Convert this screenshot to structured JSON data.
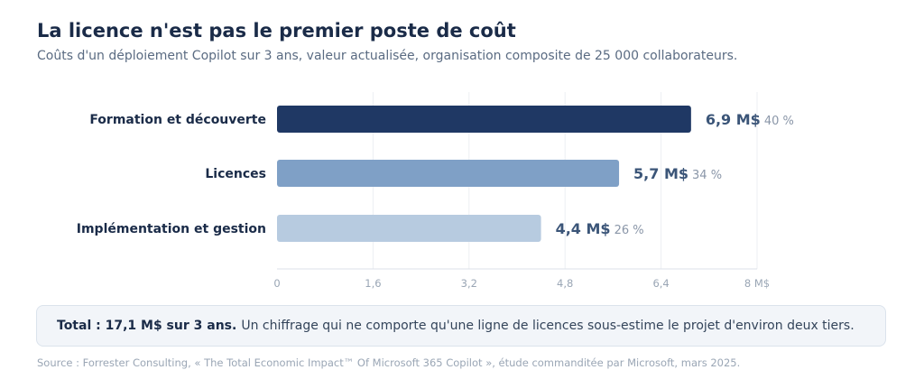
{
  "title": "La licence n'est pas le premier poste de coût",
  "subtitle": "Coûts d'un déploiement Copilot sur 3 ans, valeur actualisée, organisation composite de 25 000 collaborateurs.",
  "colors": {
    "bar_formation": "#1f3864",
    "bar_licences": "#7fa0c6",
    "bar_implementation": "#b7cbe0",
    "value_label": "#3b5578",
    "percent_label": "#8a96a8",
    "category_label": "#1a2b48",
    "tick_label": "#9aa6b5",
    "grid": "#eceff3"
  },
  "chart_data": {
    "type": "bar",
    "orientation": "horizontal",
    "categories": [
      "Formation et découverte",
      "Licences",
      "Implémentation et gestion"
    ],
    "values": [
      6.9,
      5.7,
      4.4
    ],
    "value_labels": [
      "6,9 M$",
      "5,7 M$",
      "4,4 M$"
    ],
    "percent_labels": [
      "40 %",
      "34 %",
      "26 %"
    ],
    "xlim": [
      0,
      8
    ],
    "xticks": [
      0,
      1.6,
      3.2,
      4.8,
      6.4,
      8
    ],
    "xtick_labels": [
      "0",
      "1,6",
      "3,2",
      "4,8",
      "6,4",
      "8 M$"
    ],
    "grid": true
  },
  "callout": {
    "bold": "Total : 17,1 M$ sur 3 ans.",
    "text": "Un chiffrage qui ne comporte qu'une ligne de licences sous-estime le projet d'environ deux tiers."
  },
  "source": "Source : Forrester Consulting, « The Total Economic Impact™ Of Microsoft 365 Copilot », étude commanditée par Microsoft, mars 2025."
}
